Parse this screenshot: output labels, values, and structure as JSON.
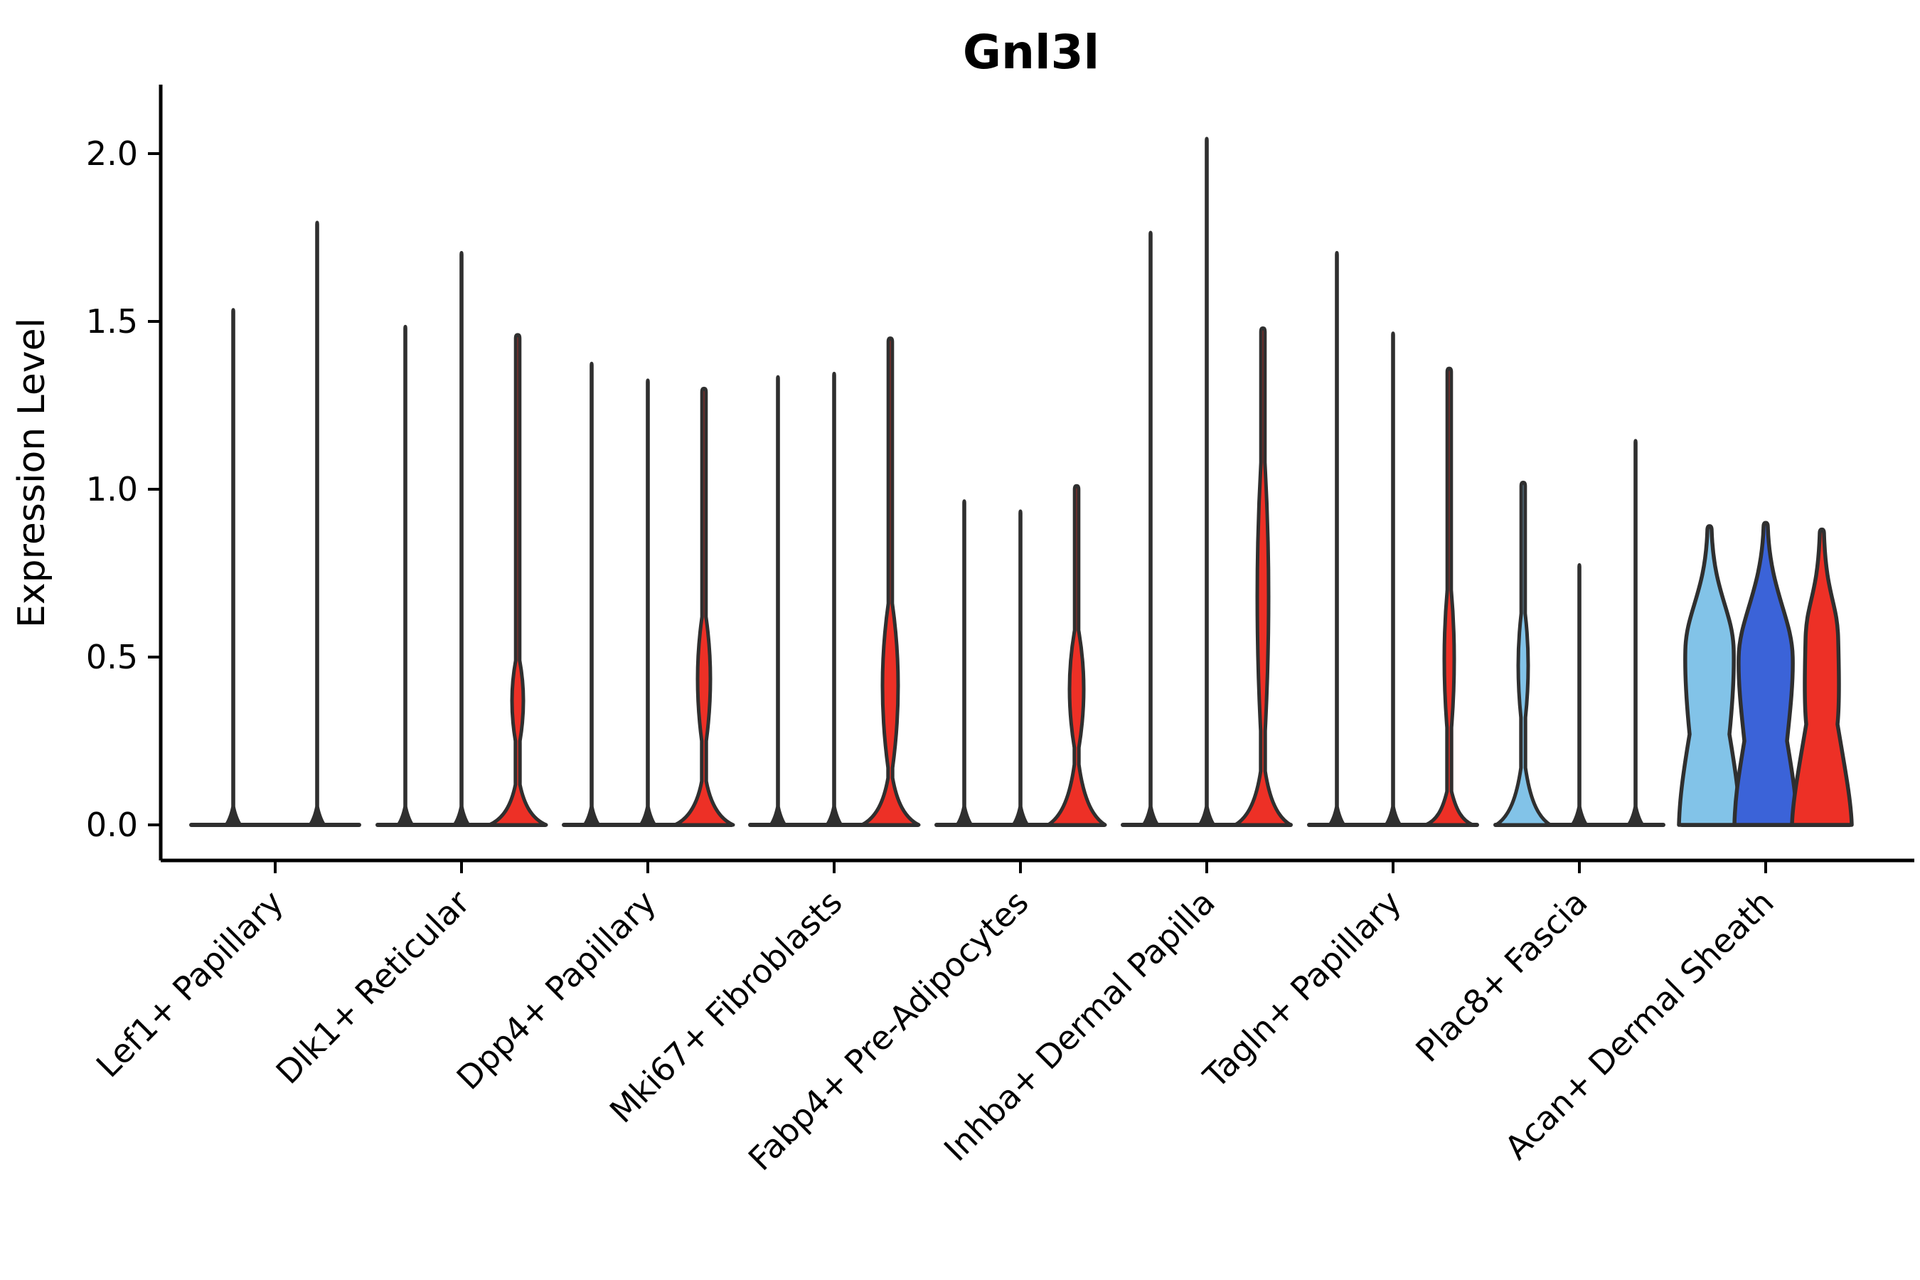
{
  "chart_data": {
    "type": "violin",
    "title": "Gnl3l",
    "xlabel": "",
    "ylabel": "Expression Level",
    "ylim": [
      -0.11,
      2.2
    ],
    "grid": false,
    "legend": "none",
    "ytick_values": [
      0.0,
      0.5,
      1.0,
      1.5,
      2.0
    ],
    "ytick_labels": [
      "0.0",
      "0.5",
      "1.0",
      "1.5",
      "2.0"
    ],
    "x_label_rotation_deg": 45,
    "palette": {
      "red": "#ED3026",
      "light_blue": "#82C3E8",
      "dark_blue": "#3B63D8",
      "none": "#333333",
      "outline": "#2F2F2F"
    },
    "categories": [
      "Lef1+ Papillary",
      "Dlk1+ Reticular",
      "Dpp4+ Papillary",
      "Mki67+ Fibroblasts",
      "Fabp4+ Pre-Adipocytes",
      "Inhba+ Dermal Papilla",
      "Tagln+ Papillary",
      "Plac8+ Fascia",
      "Acan+ Dermal Sheath"
    ],
    "groups": [
      {
        "label": "Lef1+ Papillary",
        "violins": [
          {
            "type": "spike",
            "max": 1.54,
            "color": "none"
          },
          {
            "type": "spike",
            "max": 1.8,
            "color": "none"
          }
        ]
      },
      {
        "label": "Dlk1+ Reticular",
        "violins": [
          {
            "type": "spike",
            "max": 1.49,
            "color": "none"
          },
          {
            "type": "spike",
            "max": 1.71,
            "color": "none"
          },
          {
            "type": "bulge",
            "max": 1.46,
            "color": "red",
            "bulge": {
              "lo": 0.25,
              "hi": 0.49,
              "w": 8
            },
            "base": {
              "h": 0.12,
              "w": 40
            }
          }
        ]
      },
      {
        "label": "Dpp4+ Papillary",
        "violins": [
          {
            "type": "spike",
            "max": 1.38,
            "color": "none"
          },
          {
            "type": "spike",
            "max": 1.33,
            "color": "none"
          },
          {
            "type": "bulge",
            "max": 1.3,
            "color": "red",
            "bulge": {
              "lo": 0.25,
              "hi": 0.62,
              "w": 9
            },
            "base": {
              "h": 0.13,
              "w": 41
            }
          }
        ]
      },
      {
        "label": "Mki67+ Fibroblasts",
        "violins": [
          {
            "type": "spike",
            "max": 1.34,
            "color": "none"
          },
          {
            "type": "spike",
            "max": 1.35,
            "color": "none"
          },
          {
            "type": "bulge",
            "max": 1.45,
            "color": "red",
            "bulge": {
              "lo": 0.17,
              "hi": 0.66,
              "w": 11
            },
            "base": {
              "h": 0.14,
              "w": 40
            }
          }
        ]
      },
      {
        "label": "Fabp4+ Pre-Adipocytes",
        "violins": [
          {
            "type": "spike",
            "max": 0.97,
            "color": "none"
          },
          {
            "type": "spike",
            "max": 0.94,
            "color": "none"
          },
          {
            "type": "bulge",
            "max": 1.01,
            "color": "red",
            "bulge": {
              "lo": 0.23,
              "hi": 0.58,
              "w": 10
            },
            "base": {
              "h": 0.18,
              "w": 40
            }
          }
        ]
      },
      {
        "label": "Inhba+ Dermal Papilla",
        "violins": [
          {
            "type": "spike",
            "max": 1.77,
            "color": "none"
          },
          {
            "type": "spike",
            "max": 2.05,
            "color": "none"
          },
          {
            "type": "bulge",
            "max": 1.48,
            "color": "red",
            "bulge": {
              "lo": 0.28,
              "hi": 1.08,
              "w": 8
            },
            "base": {
              "h": 0.16,
              "w": 39
            }
          }
        ]
      },
      {
        "label": "Tagln+ Papillary",
        "violins": [
          {
            "type": "spike",
            "max": 1.71,
            "color": "none"
          },
          {
            "type": "spike",
            "max": 1.47,
            "color": "none"
          },
          {
            "type": "bulge",
            "max": 1.36,
            "color": "red",
            "bulge": {
              "lo": 0.29,
              "hi": 0.7,
              "w": 7
            },
            "base": {
              "h": 0.1,
              "w": 33
            }
          }
        ]
      },
      {
        "label": "Plac8+ Fascia",
        "violins": [
          {
            "type": "bulge",
            "max": 1.02,
            "color": "light_blue",
            "bulge": {
              "lo": 0.32,
              "hi": 0.63,
              "w": 7
            },
            "base": {
              "h": 0.17,
              "w": 38
            }
          },
          {
            "type": "spike",
            "max": 0.78,
            "color": "none"
          },
          {
            "type": "spike",
            "max": 1.15,
            "color": "none"
          }
        ]
      },
      {
        "label": "Acan+ Dermal Sheath",
        "violins": [
          {
            "type": "wide",
            "max": 0.89,
            "color": "light_blue",
            "waist": {
              "v": 0.27,
              "w": 28
            },
            "bulge": {
              "v": 0.52,
              "w": 34
            },
            "base": {
              "w": 43
            }
          },
          {
            "type": "wide",
            "max": 0.9,
            "color": "dark_blue",
            "waist": {
              "v": 0.25,
              "w": 30
            },
            "bulge": {
              "v": 0.5,
              "w": 38
            },
            "base": {
              "w": 44
            }
          },
          {
            "type": "wide",
            "max": 0.88,
            "color": "red",
            "waist": {
              "v": 0.3,
              "w": 22
            },
            "bulge": {
              "v": 0.55,
              "w": 23
            },
            "base": {
              "w": 42
            }
          }
        ]
      }
    ]
  }
}
